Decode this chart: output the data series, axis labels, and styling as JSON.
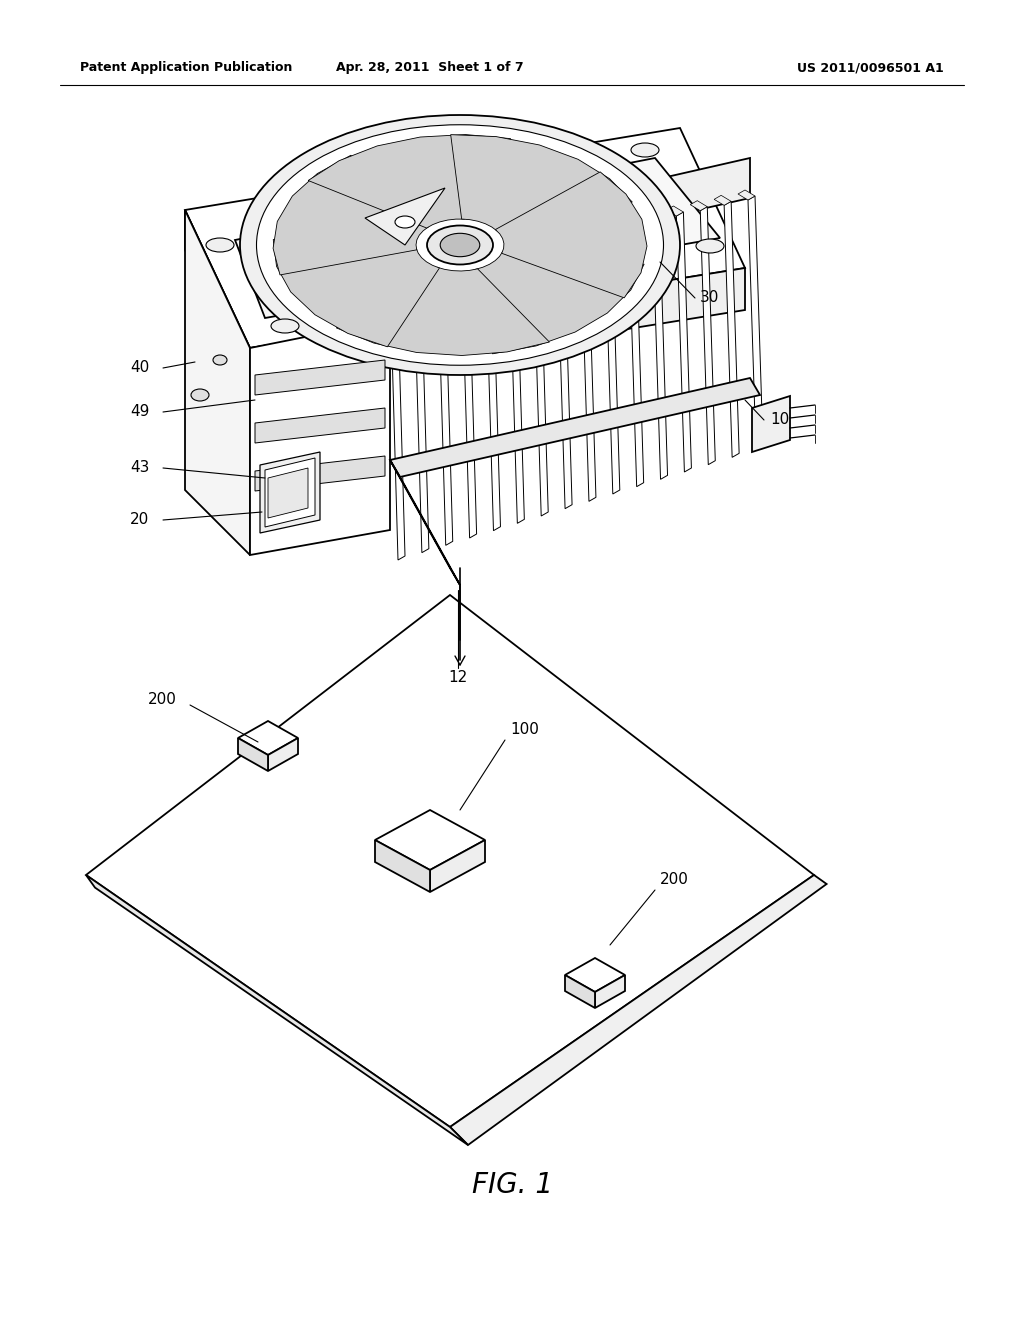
{
  "background_color": "#ffffff",
  "fig_width": 10.24,
  "fig_height": 13.2,
  "header_left": "Patent Application Publication",
  "header_center": "Apr. 28, 2011  Sheet 1 of 7",
  "header_right": "US 2011/0096501 A1",
  "figure_label": "FIG. 1",
  "line_color": "#000000",
  "fill_color": "#ffffff",
  "label_fontsize": 11,
  "header_fontsize": 9,
  "fig_label_fontsize": 20
}
